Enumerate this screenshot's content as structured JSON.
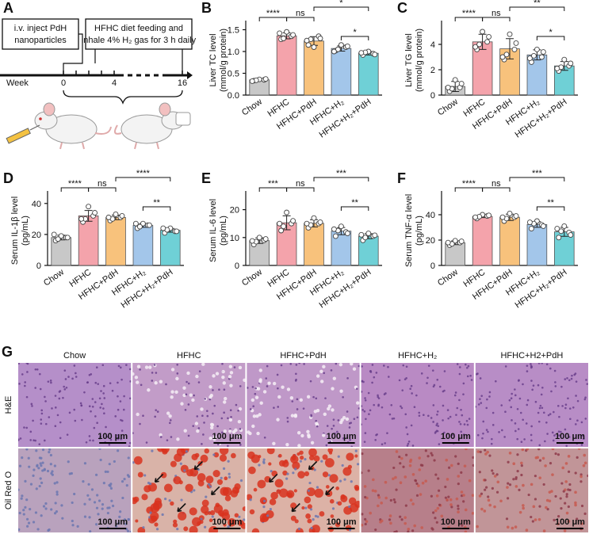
{
  "chart_data": [
    {
      "type": "bar",
      "label": "B",
      "ylabel": [
        "Liver TC level",
        "(mmol/g protein)"
      ],
      "categories": [
        "Chow",
        "HFHC",
        "HFHC+PdH",
        "HFHC+H₂",
        "HFHC+H₂+PdH"
      ],
      "colors": [
        "#c8c8c8",
        "#f4a3ab",
        "#f8c27c",
        "#a3c6ea",
        "#6fd0d6"
      ],
      "values": [
        0.35,
        1.36,
        1.24,
        1.07,
        0.96
      ],
      "errors": [
        0.02,
        0.07,
        0.1,
        0.06,
        0.04
      ],
      "points": [
        [
          0.33,
          0.35,
          0.36,
          0.34,
          0.37,
          0.32
        ],
        [
          1.28,
          1.35,
          1.45,
          1.3,
          1.38,
          1.42
        ],
        [
          1.15,
          1.35,
          1.1,
          1.28,
          1.3,
          1.25
        ],
        [
          1.02,
          1.1,
          1.15,
          1.05,
          1.12,
          1.0
        ],
        [
          0.92,
          0.95,
          1.0,
          0.98,
          0.93,
          0.97
        ]
      ],
      "significance": [
        "****",
        "ns",
        "*",
        "*"
      ],
      "ylim": [
        0,
        1.6
      ],
      "yticks": [
        {
          "value": 0,
          "label": "0.0"
        },
        0.5,
        {
          "value": 1,
          "label": "1.0"
        },
        1.5
      ]
    },
    {
      "type": "bar",
      "label": "C",
      "ylabel": [
        "Liver TG level",
        "(mmol/g protein)"
      ],
      "categories": [
        "Chow",
        "HFHC",
        "HFHC+PdH",
        "HFHC+H₂",
        "HFHC+H₂+PdH"
      ],
      "colors": [
        "#c8c8c8",
        "#f4a3ab",
        "#f8c27c",
        "#a3c6ea",
        "#6fd0d6"
      ],
      "values": [
        0.68,
        4.2,
        3.65,
        3.17,
        2.3
      ],
      "errors": [
        0.4,
        0.6,
        0.8,
        0.4,
        0.35
      ],
      "points": [
        [
          0.3,
          0.6,
          1.2,
          0.5,
          0.9,
          0.6
        ],
        [
          3.6,
          4.2,
          5.0,
          4.0,
          4.6,
          3.8
        ],
        [
          2.8,
          3.6,
          4.8,
          3.2,
          4.1,
          3.0
        ],
        [
          2.6,
          3.0,
          3.6,
          3.1,
          3.4,
          2.9
        ],
        [
          1.9,
          2.3,
          2.8,
          2.2,
          2.5,
          2.1
        ]
      ],
      "significance": [
        "****",
        "ns",
        "**",
        "*"
      ],
      "ylim": [
        0,
        5.5
      ],
      "yticks": [
        0,
        2,
        4
      ]
    },
    {
      "type": "bar",
      "label": "D",
      "ylabel": [
        "Serum IL-1β level",
        "(pg/mL)"
      ],
      "categories": [
        "Chow",
        "HFHC",
        "HFHC+PdH",
        "HFHC+H₂",
        "HFHC+H₂+PdH"
      ],
      "colors": [
        "#c8c8c8",
        "#f4a3ab",
        "#f8c27c",
        "#a3c6ea",
        "#6fd0d6"
      ],
      "values": [
        18,
        32,
        31,
        25.8,
        22.7
      ],
      "errors": [
        1.5,
        3.5,
        1.5,
        1.2,
        1.2
      ],
      "points": [
        [
          16,
          18,
          19,
          17,
          18,
          20
        ],
        [
          28,
          32,
          38,
          30,
          34,
          30
        ],
        [
          29,
          31,
          33,
          30,
          32,
          31
        ],
        [
          24,
          26,
          27,
          25,
          26,
          27
        ],
        [
          21,
          22,
          24,
          23,
          22,
          24
        ]
      ],
      "significance": [
        "****",
        "ns",
        "****",
        "**"
      ],
      "ylim": [
        0,
        45
      ],
      "yticks": [
        0,
        20,
        40
      ]
    },
    {
      "type": "bar",
      "label": "E",
      "ylabel": [
        "Serum IL-6 level",
        "(pg/mL)"
      ],
      "categories": [
        "Chow",
        "HFHC",
        "HFHC+PdH",
        "HFHC+H₂",
        "HFHC+H₂+PdH"
      ],
      "colors": [
        "#c8c8c8",
        "#f4a3ab",
        "#f8c27c",
        "#a3c6ea",
        "#6fd0d6"
      ],
      "values": [
        8.9,
        15.3,
        15.1,
        12.3,
        10.5
      ],
      "errors": [
        1,
        2.5,
        1.3,
        1.3,
        0.9
      ],
      "points": [
        [
          7.5,
          9,
          10,
          8.5,
          9.5,
          8.8
        ],
        [
          12.5,
          15,
          19,
          14,
          16,
          15
        ],
        [
          13.5,
          15,
          17,
          14.5,
          15.5,
          15
        ],
        [
          10.5,
          12,
          14,
          12.5,
          11.5,
          13
        ],
        [
          9,
          10.5,
          11.5,
          10,
          10.8,
          11
        ]
      ],
      "significance": [
        "***",
        "ns",
        "***",
        "**"
      ],
      "ylim": [
        0,
        25
      ],
      "yticks": [
        0,
        10,
        20
      ]
    },
    {
      "type": "bar",
      "label": "F",
      "ylabel": [
        "Serum TNF-α level",
        "(pg/mL)"
      ],
      "categories": [
        "Chow",
        "HFHC",
        "HFHC+PdH",
        "HFHC+H₂",
        "HFHC+H₂+PdH"
      ],
      "colors": [
        "#c8c8c8",
        "#f4a3ab",
        "#f8c27c",
        "#a3c6ea",
        "#6fd0d6"
      ],
      "values": [
        17.9,
        38.7,
        38,
        32.3,
        26.5
      ],
      "errors": [
        1.5,
        1,
        2.5,
        2.2,
        3.5
      ],
      "points": [
        [
          16,
          18,
          19.5,
          17,
          19,
          18
        ],
        [
          37,
          39,
          40,
          38.5,
          39.5,
          38
        ],
        [
          35,
          38,
          41,
          37,
          39,
          38
        ],
        [
          29,
          32,
          35,
          33,
          31,
          34
        ],
        [
          22,
          26,
          31,
          27,
          24,
          29
        ]
      ],
      "significance": [
        "****",
        "ns",
        "***",
        "**"
      ],
      "ylim": [
        0,
        55
      ],
      "yticks": [
        0,
        20,
        40
      ]
    }
  ],
  "diagram": {
    "label": "A",
    "injection": [
      "i.v. inject PdH",
      "nanoparticles"
    ],
    "feeding": [
      "HFHC diet feeding and",
      "inhale 4% H₂ gas for 3 h daily"
    ],
    "axis_label": "Week",
    "weeks": [
      "0",
      "4",
      "16"
    ]
  },
  "histology": {
    "label": "G",
    "columns": [
      "Chow",
      "HFHC",
      "HFHC+PdH",
      "HFHC+H₂",
      "HFHC+H2+PdH"
    ],
    "rows": [
      "H&E",
      "Oil Red O"
    ],
    "scale_bar": "100 μm"
  }
}
